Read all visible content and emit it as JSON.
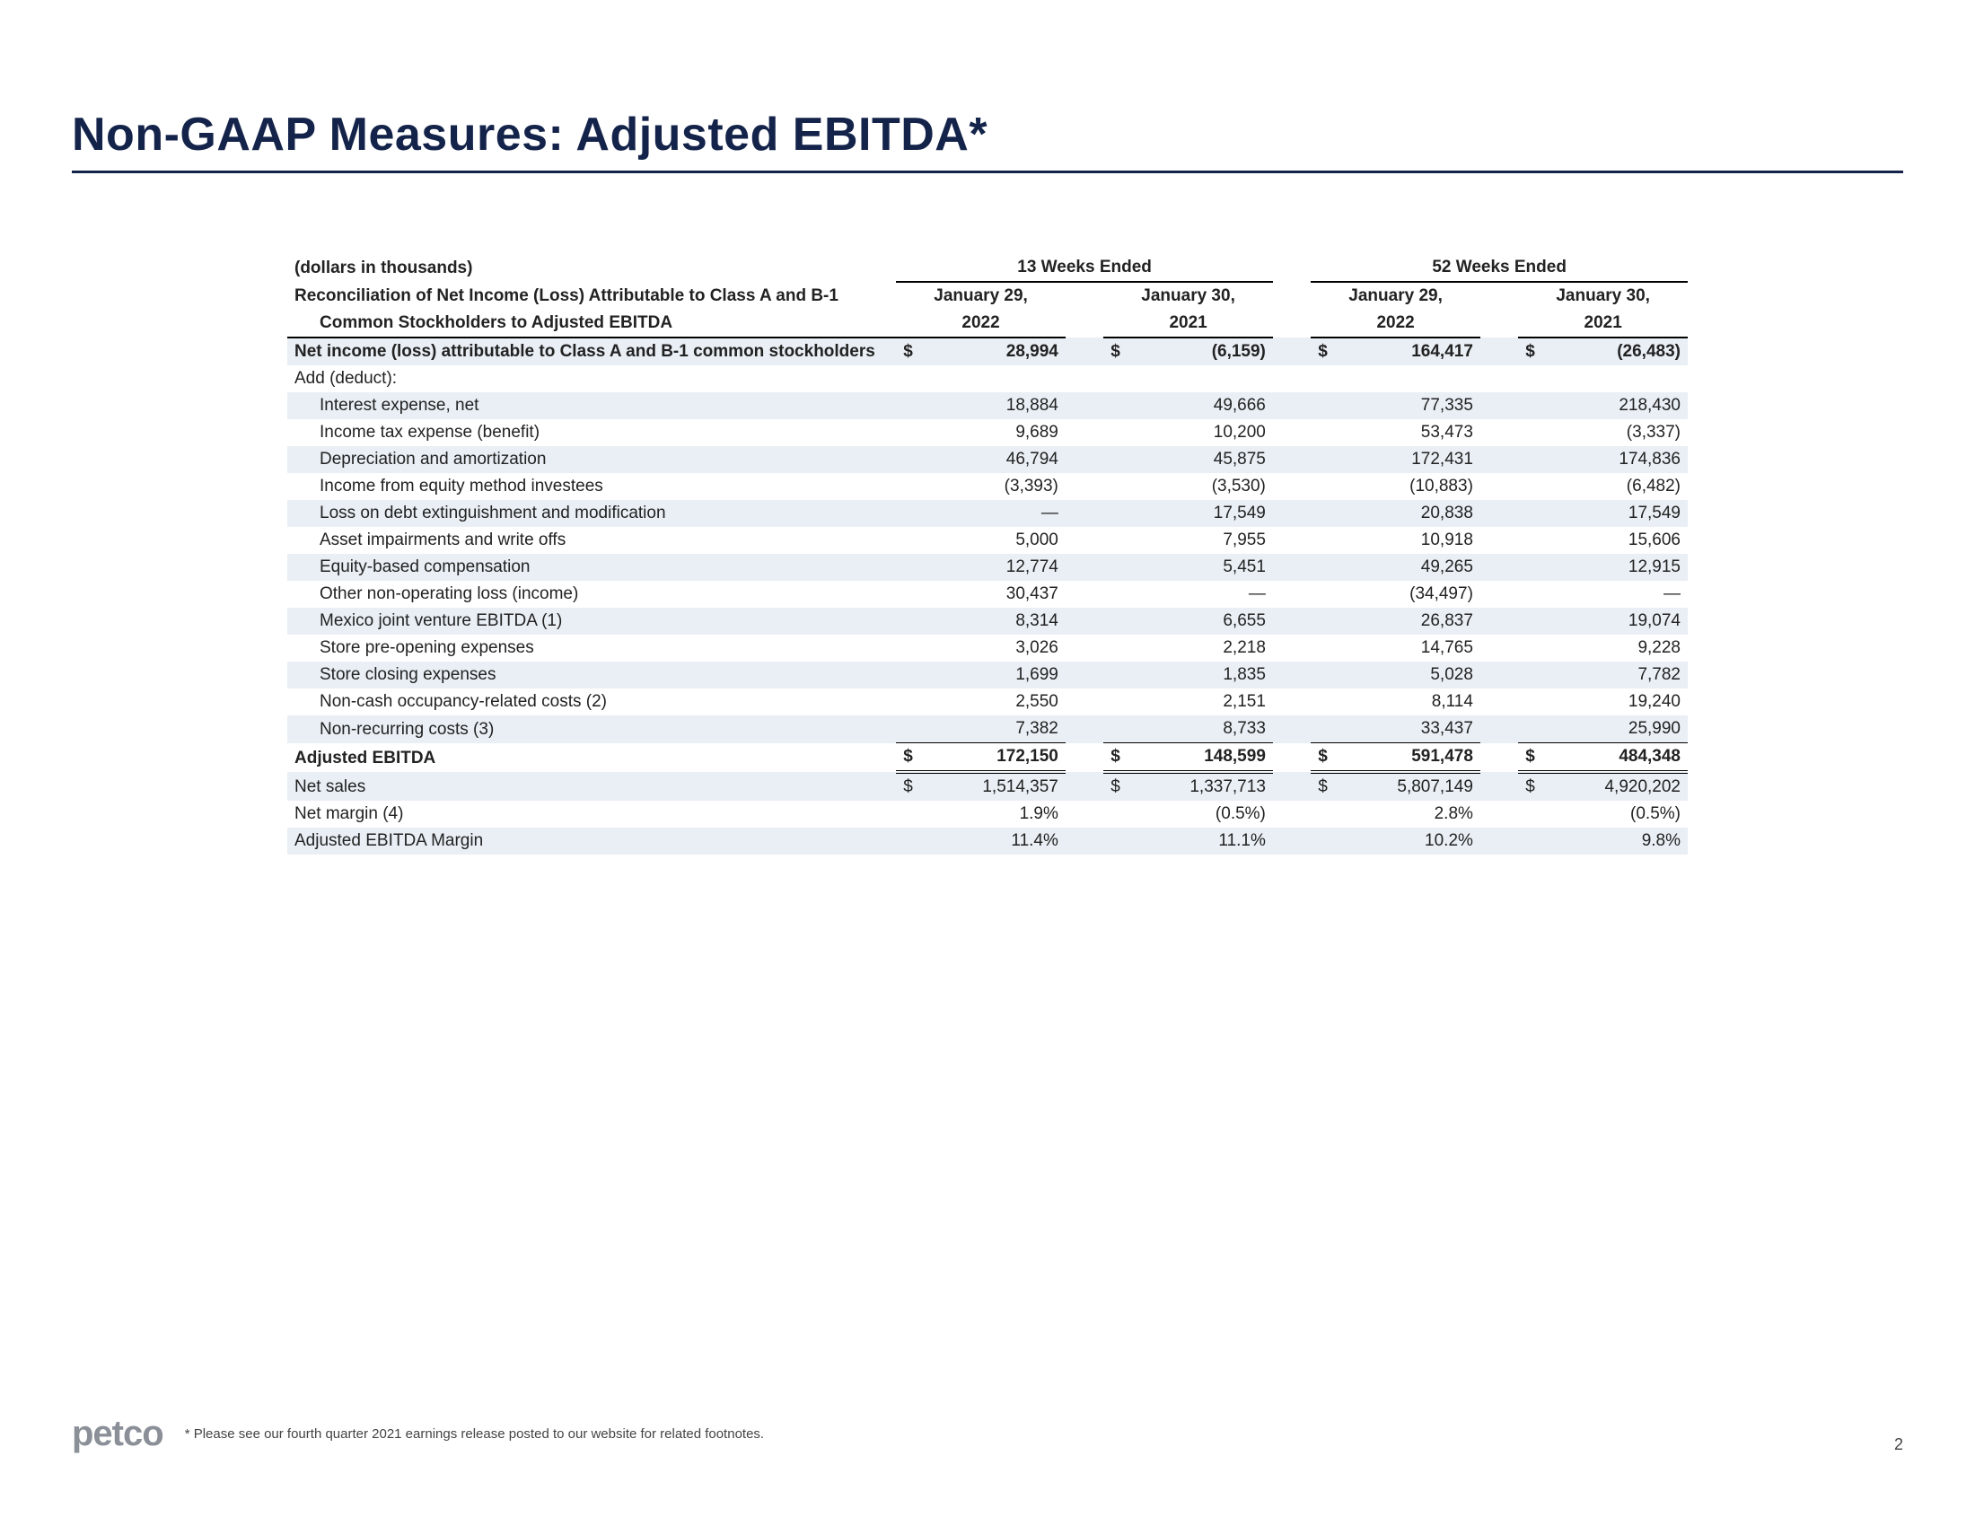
{
  "title": "Non-GAAP Measures: Adjusted EBITDA*",
  "table": {
    "units_label": "(dollars in thousands)",
    "recon_label_l1": "Reconciliation of Net Income (Loss) Attributable to Class A and B-1",
    "recon_label_l2": "Common Stockholders to Adjusted EBITDA",
    "period1": "13 Weeks Ended",
    "period2": "52 Weeks Ended",
    "dates": {
      "c1l1": "January 29,",
      "c1l2": "2022",
      "c2l1": "January 30,",
      "c2l2": "2021",
      "c3l1": "January 29,",
      "c3l2": "2022",
      "c4l1": "January 30,",
      "c4l2": "2021"
    },
    "rows": [
      {
        "key": "ni",
        "label": "Net income (loss) attributable to Class A and B-1 common stockholders",
        "shade": true,
        "bold": true,
        "hasDollar": true,
        "vals": [
          "28,994",
          "(6,159)",
          "164,417",
          "(26,483)"
        ]
      },
      {
        "key": "add",
        "label": "Add (deduct):",
        "shade": false,
        "vals": [
          "",
          "",
          "",
          ""
        ]
      },
      {
        "key": "int",
        "label": "Interest expense, net",
        "indent": true,
        "shade": true,
        "vals": [
          "18,884",
          "49,666",
          "77,335",
          "218,430"
        ]
      },
      {
        "key": "tax",
        "label": "Income tax expense (benefit)",
        "indent": true,
        "shade": false,
        "vals": [
          "9,689",
          "10,200",
          "53,473",
          "(3,337)"
        ]
      },
      {
        "key": "da",
        "label": "Depreciation and amortization",
        "indent": true,
        "shade": true,
        "vals": [
          "46,794",
          "45,875",
          "172,431",
          "174,836"
        ]
      },
      {
        "key": "eqm",
        "label": "Income from equity method investees",
        "indent": true,
        "shade": false,
        "vals": [
          "(3,393)",
          "(3,530)",
          "(10,883)",
          "(6,482)"
        ]
      },
      {
        "key": "debt",
        "label": "Loss on debt extinguishment and modification",
        "indent": true,
        "shade": true,
        "vals": [
          "—",
          "17,549",
          "20,838",
          "17,549"
        ]
      },
      {
        "key": "imp",
        "label": "Asset impairments and write offs",
        "indent": true,
        "shade": false,
        "vals": [
          "5,000",
          "7,955",
          "10,918",
          "15,606"
        ]
      },
      {
        "key": "sbc",
        "label": "Equity-based compensation",
        "indent": true,
        "shade": true,
        "vals": [
          "12,774",
          "5,451",
          "49,265",
          "12,915"
        ]
      },
      {
        "key": "onl",
        "label": "Other non-operating loss (income)",
        "indent": true,
        "shade": false,
        "vals": [
          "30,437",
          "—",
          "(34,497)",
          "—"
        ]
      },
      {
        "key": "mx",
        "label": "Mexico joint venture EBITDA (1)",
        "indent": true,
        "shade": true,
        "vals": [
          "8,314",
          "6,655",
          "26,837",
          "19,074"
        ]
      },
      {
        "key": "spo",
        "label": "Store pre-opening expenses",
        "indent": true,
        "shade": false,
        "vals": [
          "3,026",
          "2,218",
          "14,765",
          "9,228"
        ]
      },
      {
        "key": "scl",
        "label": "Store closing expenses",
        "indent": true,
        "shade": true,
        "vals": [
          "1,699",
          "1,835",
          "5,028",
          "7,782"
        ]
      },
      {
        "key": "occ",
        "label": "Non-cash occupancy-related costs (2)",
        "indent": true,
        "shade": false,
        "vals": [
          "2,550",
          "2,151",
          "8,114",
          "19,240"
        ]
      },
      {
        "key": "nrc",
        "label": "Non-recurring costs (3)",
        "indent": true,
        "shade": true,
        "underline": "single",
        "vals": [
          "7,382",
          "8,733",
          "33,437",
          "25,990"
        ]
      },
      {
        "key": "ae",
        "label": "Adjusted EBITDA",
        "shade": false,
        "bold": true,
        "hasDollar": true,
        "underline": "double",
        "topBorder": true,
        "vals": [
          "172,150",
          "148,599",
          "591,478",
          "484,348"
        ]
      },
      {
        "key": "ns",
        "label": "Net sales",
        "shade": true,
        "hasDollar": true,
        "vals": [
          "1,514,357",
          "1,337,713",
          "5,807,149",
          "4,920,202"
        ]
      },
      {
        "key": "nm",
        "label": "Net margin (4)",
        "shade": false,
        "vals": [
          "1.9%",
          "(0.5%)",
          "2.8%",
          "(0.5%)"
        ]
      },
      {
        "key": "aem",
        "label": "Adjusted EBITDA Margin",
        "shade": true,
        "vals": [
          "11.4%",
          "11.1%",
          "10.2%",
          "9.8%"
        ]
      }
    ]
  },
  "footer": {
    "logo": "petco",
    "note": "* Please see our fourth quarter 2021 earnings release posted to our website for related footnotes.",
    "page": "2"
  },
  "colors": {
    "title": "#14234a",
    "shade": "#e9eff5",
    "text": "#222222",
    "logo": "#8a8f98"
  }
}
